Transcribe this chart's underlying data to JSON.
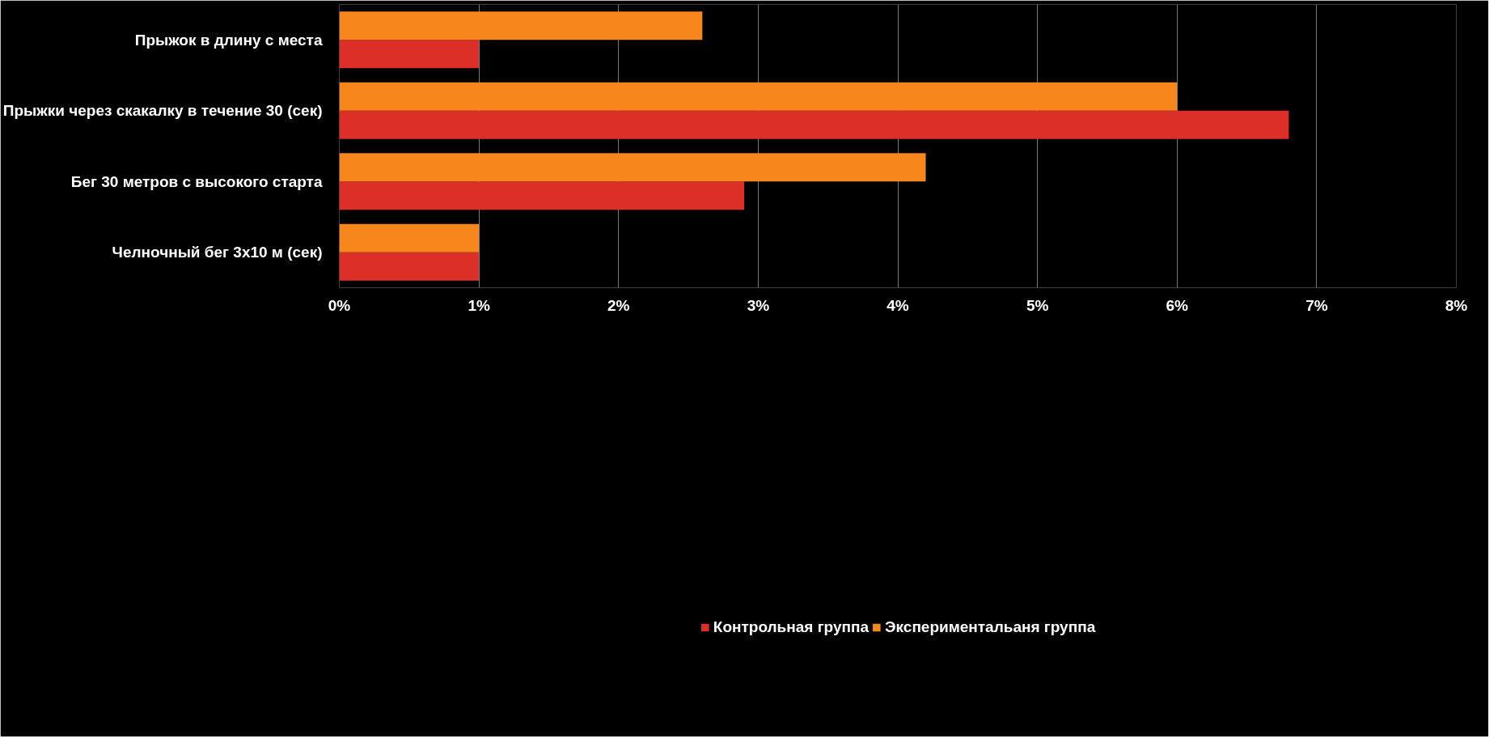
{
  "chart_data": {
    "type": "bar",
    "orientation": "horizontal",
    "categories": [
      "Прыжок в длину с места",
      "Прыжки через скакалку в течение 30 (сек)",
      "Бег 30 метров с высокого старта",
      "Челночный бег 3х10 м (сек)"
    ],
    "series": [
      {
        "name": "Контрольная группа",
        "color": "#dc2f27",
        "values": [
          1.0,
          6.8,
          2.9,
          1.0
        ]
      },
      {
        "name": "Экспериментальаня группа",
        "color": "#f7861c",
        "values": [
          2.6,
          6.0,
          4.2,
          1.0
        ]
      }
    ],
    "xlim": [
      0,
      8
    ],
    "xticks": [
      {
        "value": 0,
        "label": "0%"
      },
      {
        "value": 1,
        "label": "1%"
      },
      {
        "value": 2,
        "label": "2%"
      },
      {
        "value": 3,
        "label": "3%"
      },
      {
        "value": 4,
        "label": "4%"
      },
      {
        "value": 5,
        "label": "5%"
      },
      {
        "value": 6,
        "label": "6%"
      },
      {
        "value": 7,
        "label": "7%"
      },
      {
        "value": 8,
        "label": "8%"
      }
    ],
    "grid": "x",
    "legend": "bottom"
  }
}
